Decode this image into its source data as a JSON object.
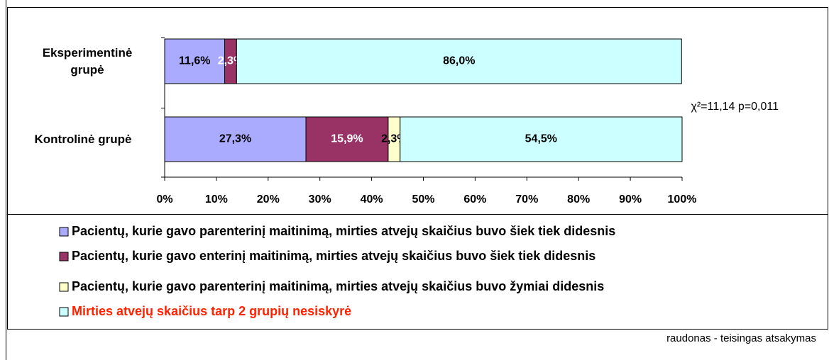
{
  "chart_data": {
    "type": "stacked-barh",
    "categories": [
      "Eksperimentinė grupė",
      "Kontrolinė grupė"
    ],
    "series": [
      {
        "name": "Pacientų, kurie gavo parenterinį maitinimą, mirties atvejų skaičius buvo šiek tiek didesnis",
        "color": "#aaaaff",
        "label_color": "#000000",
        "legend_text_color": "#000000",
        "values": [
          11.6,
          27.3
        ],
        "value_labels": [
          "11,6%",
          "27,3%"
        ]
      },
      {
        "name": "Pacientų, kurie gavo enterinį maitinimą, mirties atvejų skaičius buvo šiek tiek didesnis",
        "color": "#993366",
        "label_color": "#ffffff",
        "legend_text_color": "#000000",
        "values": [
          2.3,
          15.9
        ],
        "value_labels": [
          "2,3%",
          "15,9%"
        ]
      },
      {
        "name": "Pacientų, kurie gavo parenterinį maitinimą, mirties atvejų skaičius buvo žymiai didesnis",
        "color": "#ffffcc",
        "label_color": "#000000",
        "legend_text_color": "#000000",
        "values": [
          null,
          2.3
        ],
        "value_labels": [
          null,
          "2,3%"
        ]
      },
      {
        "name": "Mirties atvejų skaičius tarp 2 grupių nesiskyrė",
        "color": "#ccffff",
        "label_color": "#000000",
        "legend_text_color": "#ff2200",
        "values": [
          86.0,
          54.5
        ],
        "value_labels": [
          "86,0%",
          "54,5%"
        ]
      }
    ],
    "xlim": [
      0,
      100
    ],
    "xticks": [
      {
        "value": 0,
        "label": "0%"
      },
      {
        "value": 10,
        "label": "10%"
      },
      {
        "value": 20,
        "label": "20%"
      },
      {
        "value": 30,
        "label": "30%"
      },
      {
        "value": 40,
        "label": "40%"
      },
      {
        "value": 50,
        "label": "50%"
      },
      {
        "value": 60,
        "label": "60%"
      },
      {
        "value": 70,
        "label": "70%"
      },
      {
        "value": 80,
        "label": "80%"
      },
      {
        "value": 90,
        "label": "90%"
      },
      {
        "value": 100,
        "label": "100%"
      }
    ],
    "annotation": "χ²=11,14 p=0,011",
    "note": "raudonas - teisingas atsakymas"
  }
}
